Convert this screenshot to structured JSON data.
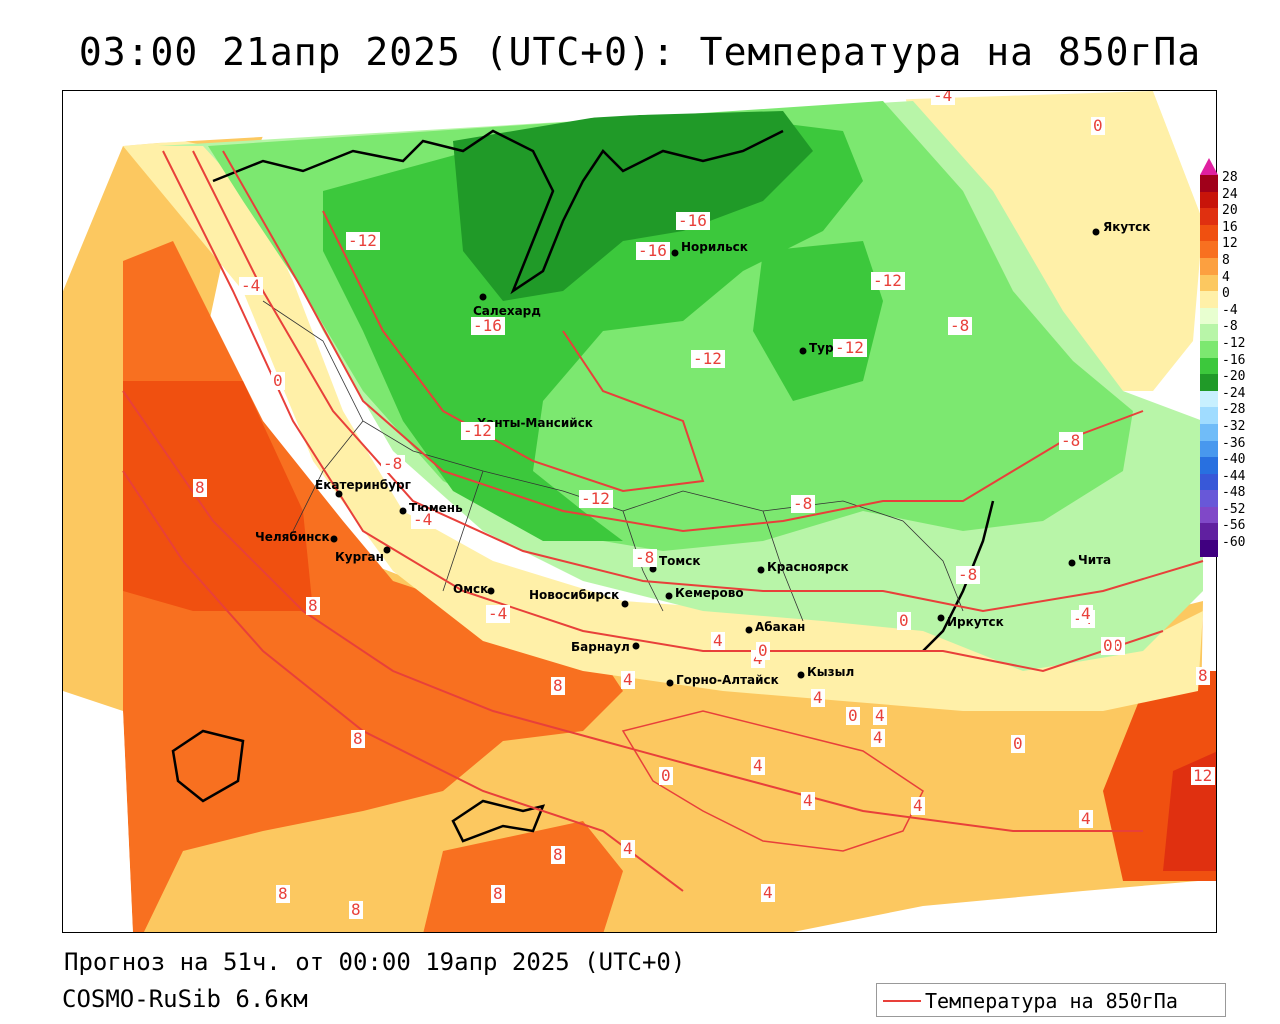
{
  "title": "03:00 21апр 2025 (UTC+0): Температура на 850гПа",
  "forecast_line": "Прогноз на 51ч. от 00:00 19апр 2025 (UTC+0)",
  "model_line": "COSMO-RuSib 6.6км",
  "legend_label": "Температура на 850гПа",
  "colorbar": {
    "labels": [
      "28",
      "24",
      "20",
      "16",
      "12",
      "8",
      "4",
      "0",
      "-4",
      "-8",
      "-12",
      "-16",
      "-20",
      "-24",
      "-28",
      "-32",
      "-36",
      "-40",
      "-44",
      "-48",
      "-52",
      "-56",
      "-60"
    ],
    "colors": [
      "#a0001a",
      "#c8140a",
      "#e03010",
      "#f05010",
      "#f87020",
      "#fca040",
      "#fcc860",
      "#fff0a8",
      "#e8ffd0",
      "#b8f5a8",
      "#7ce870",
      "#3cc83c",
      "#209a28",
      "#c8f0ff",
      "#a0dcff",
      "#70bcf8",
      "#4898ee",
      "#2870e0",
      "#3858d8",
      "#6858d8",
      "#8048c8",
      "#6020a0",
      "#400080"
    ]
  },
  "cities": [
    {
      "name": "Якутск"
    },
    {
      "name": "Норильск"
    },
    {
      "name": "Салехард"
    },
    {
      "name": "Тура"
    },
    {
      "name": "Ханты-Мансийск"
    },
    {
      "name": "Екатеринбург"
    },
    {
      "name": "Тюмень"
    },
    {
      "name": "Челябинск"
    },
    {
      "name": "Курган"
    },
    {
      "name": "Омск"
    },
    {
      "name": "Новосибирск"
    },
    {
      "name": "Томск"
    },
    {
      "name": "Кемерово"
    },
    {
      "name": "Красноярск"
    },
    {
      "name": "Абакан"
    },
    {
      "name": "Барнаул"
    },
    {
      "name": "Горно-Алтайск"
    },
    {
      "name": "Кызыл"
    },
    {
      "name": "Иркутск"
    },
    {
      "name": "Чита"
    }
  ],
  "isoline_labels": [
    "-4",
    "0",
    "-12",
    "-4",
    "0",
    "-16",
    "-16",
    "-16",
    "-12",
    "-12",
    "-12",
    "-8",
    "-12",
    "-8",
    "-8",
    "-8",
    "-4",
    "-12",
    "-8",
    "-8",
    "-4",
    "0",
    "-4",
    "0",
    "8",
    "8",
    "8",
    "4",
    "4",
    "0",
    "4",
    "0",
    "4",
    "0",
    "4",
    "4",
    "4",
    "4",
    "4",
    "0",
    "4",
    "8",
    "4",
    "8",
    "8",
    "8",
    "8",
    "4",
    "12",
    "8",
    "4",
    "0"
  ]
}
